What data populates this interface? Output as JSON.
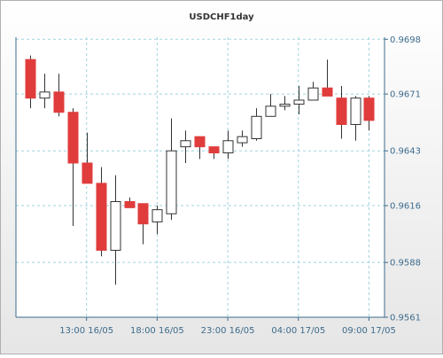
{
  "chart_data": {
    "type": "candlestick",
    "title": "USDCHF1day",
    "x": [
      9,
      10,
      11,
      12,
      13,
      14,
      15,
      16,
      17,
      18,
      19,
      20,
      21,
      22,
      23,
      24,
      25,
      26,
      27,
      28,
      29,
      30,
      31,
      32,
      33
    ],
    "open": [
      0.9688,
      0.9669,
      0.9672,
      0.9662,
      0.9637,
      0.9627,
      0.9594,
      0.9618,
      0.9617,
      0.9608,
      0.9612,
      0.9645,
      0.965,
      0.9645,
      0.9642,
      0.9647,
      0.9649,
      0.966,
      0.9665,
      0.9666,
      0.9668,
      0.9674,
      0.9669,
      0.9656,
      0.9669
    ],
    "high": [
      0.969,
      0.9681,
      0.9681,
      0.9664,
      0.9652,
      0.9635,
      0.9631,
      0.962,
      0.9617,
      0.9616,
      0.9659,
      0.9653,
      0.965,
      0.9645,
      0.9653,
      0.9653,
      0.9664,
      0.9671,
      0.967,
      0.9675,
      0.9677,
      0.9688,
      0.9675,
      0.967,
      0.967
    ],
    "low": [
      0.9664,
      0.9664,
      0.966,
      0.9606,
      0.9627,
      0.9591,
      0.9577,
      0.9615,
      0.9597,
      0.9602,
      0.9609,
      0.9637,
      0.9639,
      0.9639,
      0.9639,
      0.9645,
      0.9648,
      0.966,
      0.9663,
      0.9661,
      0.9668,
      0.967,
      0.9649,
      0.9648,
      0.9653
    ],
    "close": [
      0.9669,
      0.9672,
      0.9662,
      0.9637,
      0.9627,
      0.9594,
      0.9618,
      0.9615,
      0.9607,
      0.9614,
      0.9643,
      0.9648,
      0.9645,
      0.9642,
      0.9648,
      0.965,
      0.966,
      0.9665,
      0.9666,
      0.9668,
      0.9674,
      0.967,
      0.9656,
      0.9669,
      0.9658
    ],
    "up_color": "#ffffff",
    "down_color": "#e03c3c",
    "xlim": [
      8,
      34.1
    ],
    "xticks": [
      {
        "value": 13,
        "label": "13:00 16/05"
      },
      {
        "value": 18,
        "label": "18:00 16/05"
      },
      {
        "value": 23,
        "label": "23:00 16/05"
      },
      {
        "value": 28,
        "label": "04:00 17/05"
      },
      {
        "value": 33,
        "label": "09:00 17/05"
      }
    ],
    "ylim": [
      0.9561,
      0.9699
    ],
    "yticks": [
      0.9561,
      0.9588,
      0.9616,
      0.9643,
      0.9671,
      0.9698
    ],
    "grid": true
  }
}
